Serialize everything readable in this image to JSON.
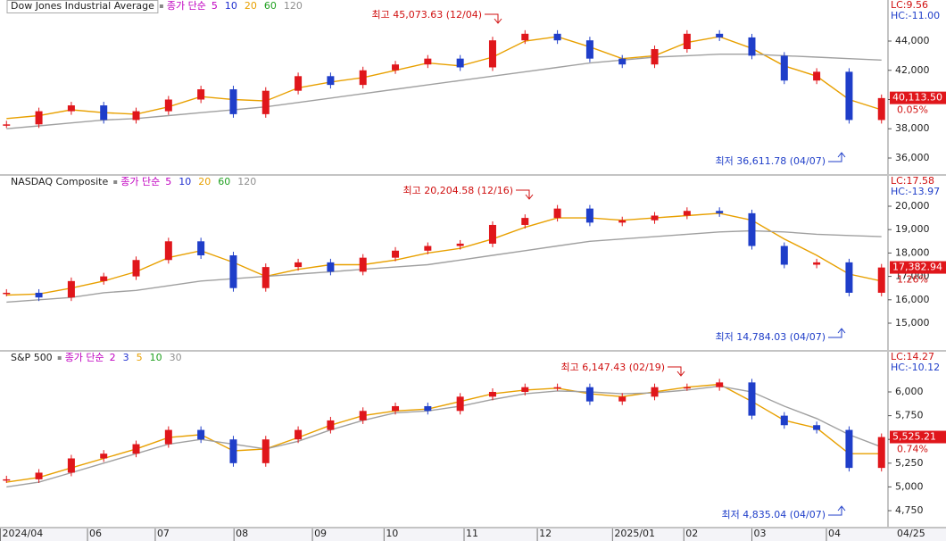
{
  "chart_data": [
    {
      "type": "candlestick",
      "title": "Dow Jones Industrial Average",
      "ma_label": "종가 단순",
      "ma": [
        {
          "label": "5",
          "color": "#c000c0"
        },
        {
          "label": "10",
          "color": "#2030d0"
        },
        {
          "label": "20",
          "color": "#e8a000"
        },
        {
          "label": "60",
          "color": "#20a020"
        },
        {
          "label": "120",
          "color": "#909090"
        }
      ],
      "x": [
        0,
        1,
        2,
        3,
        4,
        5,
        6,
        7,
        8,
        9,
        10,
        11,
        12,
        13,
        14,
        15,
        16,
        17,
        18,
        19,
        20,
        21,
        22,
        23,
        24,
        25,
        26,
        27
      ],
      "xlim": [
        -0.2,
        27.2
      ],
      "ylim": [
        34900,
        46810
      ],
      "yticks": [
        {
          "value": 36000,
          "label": "36,000"
        },
        {
          "value": 38000,
          "label": "38,000"
        },
        {
          "value": 40000,
          "label": "40,000"
        },
        {
          "value": 42000,
          "label": "42,000"
        },
        {
          "value": 44000,
          "label": "44,000"
        }
      ],
      "close": [
        38300,
        39200,
        39600,
        38600,
        39200,
        40000,
        40700,
        39000,
        40600,
        41600,
        41000,
        42000,
        42400,
        42800,
        42200,
        44050,
        44500,
        44050,
        42800,
        42400,
        43450,
        44500,
        44250,
        43000,
        41300,
        41900,
        38600,
        40100
      ],
      "lines": [
        {
          "color": "#e8a000",
          "values": [
            38700,
            38900,
            39300,
            39100,
            39000,
            39500,
            40200,
            40000,
            39900,
            40800,
            41200,
            41500,
            42000,
            42500,
            42300,
            42900,
            44000,
            44300,
            43600,
            42800,
            43000,
            43900,
            44300,
            43500,
            42300,
            41600,
            40000,
            39300
          ]
        },
        {
          "color": "#a0a0a0",
          "values": [
            38000,
            38200,
            38400,
            38600,
            38700,
            38900,
            39100,
            39300,
            39500,
            39800,
            40100,
            40400,
            40700,
            41000,
            41300,
            41600,
            41900,
            42200,
            42500,
            42700,
            42900,
            43000,
            43100,
            43100,
            43000,
            42900,
            42800,
            42700
          ]
        }
      ],
      "up_color": "#e0161b",
      "down_color": "#1f3ec9",
      "high_label": "최고 45,073.63 (12/04)",
      "low_label": "최저 36,611.78 (04/07)",
      "lc": "LC:9.56",
      "hc": "HC:-11.00",
      "last": {
        "value": 40113.5,
        "label": "40,113.50"
      },
      "change": "0.05%"
    },
    {
      "type": "candlestick",
      "title": "NASDAQ Composite",
      "ma_label": "종가 단순",
      "ma": [
        {
          "label": "5",
          "color": "#c000c0"
        },
        {
          "label": "10",
          "color": "#2030d0"
        },
        {
          "label": "20",
          "color": "#e8a000"
        },
        {
          "label": "60",
          "color": "#20a020"
        },
        {
          "label": "120",
          "color": "#909090"
        }
      ],
      "x": [
        0,
        1,
        2,
        3,
        4,
        5,
        6,
        7,
        8,
        9,
        10,
        11,
        12,
        13,
        14,
        15,
        16,
        17,
        18,
        19,
        20,
        21,
        22,
        23,
        24,
        25,
        26,
        27
      ],
      "xlim": [
        -0.2,
        27.2
      ],
      "ylim": [
        13855,
        21298
      ],
      "yticks": [
        {
          "value": 15000,
          "label": "15,000"
        },
        {
          "value": 16000,
          "label": "16,000"
        },
        {
          "value": 17000,
          "label": "17,000"
        },
        {
          "value": 18000,
          "label": "18,000"
        },
        {
          "value": 19000,
          "label": "19,000"
        },
        {
          "value": 20000,
          "label": "20,000"
        }
      ],
      "close": [
        16300,
        16100,
        16800,
        17000,
        17700,
        18500,
        17900,
        16500,
        17400,
        17600,
        17200,
        17800,
        18100,
        18300,
        18400,
        19200,
        19500,
        19900,
        19300,
        19400,
        19600,
        19800,
        19700,
        18300,
        17500,
        17600,
        16300,
        17380
      ],
      "lines": [
        {
          "color": "#e8a000",
          "values": [
            16200,
            16250,
            16500,
            16800,
            17200,
            17800,
            18100,
            17600,
            17000,
            17300,
            17500,
            17500,
            17700,
            18000,
            18200,
            18600,
            19100,
            19500,
            19500,
            19400,
            19500,
            19600,
            19700,
            19400,
            18600,
            17900,
            17100,
            16800
          ]
        },
        {
          "color": "#a0a0a0",
          "values": [
            15900,
            16000,
            16100,
            16300,
            16400,
            16600,
            16800,
            16900,
            17000,
            17100,
            17200,
            17300,
            17400,
            17500,
            17700,
            17900,
            18100,
            18300,
            18500,
            18600,
            18700,
            18800,
            18900,
            18950,
            18900,
            18800,
            18750,
            18700
          ]
        }
      ],
      "up_color": "#e0161b",
      "down_color": "#1f3ec9",
      "high_label": "최고 20,204.58 (12/16)",
      "low_label": "최저 14,784.03 (04/07)",
      "lc": "LC:17.58",
      "hc": "HC:-13.97",
      "last": {
        "value": 17382.94,
        "label": "17,382.94"
      },
      "change": "1.26%"
    },
    {
      "type": "candlestick",
      "title": "S&P 500",
      "ma_label": "종가 단순",
      "ma": [
        {
          "label": "2",
          "color": "#c000c0"
        },
        {
          "label": "3",
          "color": "#2030d0"
        },
        {
          "label": "5",
          "color": "#e8a000"
        },
        {
          "label": "10",
          "color": "#20a020"
        },
        {
          "label": "30",
          "color": "#909090"
        }
      ],
      "x": [
        0,
        1,
        2,
        3,
        4,
        5,
        6,
        7,
        8,
        9,
        10,
        11,
        12,
        13,
        14,
        15,
        16,
        17,
        18,
        19,
        20,
        21,
        22,
        23,
        24,
        25,
        26,
        27
      ],
      "xlim": [
        -0.2,
        27.2
      ],
      "ylim": [
        4581,
        6423
      ],
      "yticks": [
        {
          "value": 4750,
          "label": "4,750"
        },
        {
          "value": 5000,
          "label": "5,000"
        },
        {
          "value": 5250,
          "label": "5,250"
        },
        {
          "value": 5500,
          "label": "5,500"
        },
        {
          "value": 5750,
          "label": "5,750"
        },
        {
          "value": 6000,
          "label": "6,000"
        }
      ],
      "close": [
        5080,
        5150,
        5300,
        5350,
        5450,
        5600,
        5500,
        5250,
        5500,
        5600,
        5700,
        5800,
        5850,
        5800,
        5950,
        6000,
        6050,
        6050,
        5900,
        5950,
        6050,
        6050,
        6100,
        5750,
        5650,
        5600,
        5200,
        5525
      ],
      "lines": [
        {
          "color": "#e8a000",
          "values": [
            5050,
            5100,
            5200,
            5300,
            5400,
            5520,
            5550,
            5380,
            5400,
            5520,
            5650,
            5750,
            5800,
            5820,
            5900,
            5980,
            6020,
            6040,
            5980,
            5950,
            6000,
            6050,
            6080,
            5900,
            5700,
            5620,
            5350,
            5350
          ]
        },
        {
          "color": "#a0a0a0",
          "values": [
            5000,
            5050,
            5150,
            5250,
            5350,
            5450,
            5500,
            5450,
            5400,
            5480,
            5600,
            5700,
            5780,
            5800,
            5850,
            5920,
            5980,
            6010,
            6000,
            5980,
            5990,
            6020,
            6060,
            6000,
            5850,
            5720,
            5550,
            5420
          ]
        }
      ],
      "up_color": "#e0161b",
      "down_color": "#1f3ec9",
      "high_label": "최고 6,147.43 (02/19)",
      "low_label": "최저 4,835.04 (04/07)",
      "lc": "LC:14.27",
      "hc": "HC:-10.12",
      "last": {
        "value": 5525.21,
        "label": "5,525.21"
      },
      "change": "0.74%",
      "xticks": [
        {
          "value": -0.2,
          "label": "2024/04"
        },
        {
          "value": 2.5,
          "label": "06"
        },
        {
          "value": 4.59,
          "label": "07"
        },
        {
          "value": 7.02,
          "label": "08"
        },
        {
          "value": 9.44,
          "label": "09"
        },
        {
          "value": 11.65,
          "label": "10"
        },
        {
          "value": 14.12,
          "label": "11"
        },
        {
          "value": 16.38,
          "label": "12"
        },
        {
          "value": 18.7,
          "label": "2025/01"
        },
        {
          "value": 20.9,
          "label": "02"
        },
        {
          "value": 23.0,
          "label": "03"
        },
        {
          "value": 25.3,
          "label": "04"
        }
      ],
      "x_end_label": "04/25"
    }
  ]
}
